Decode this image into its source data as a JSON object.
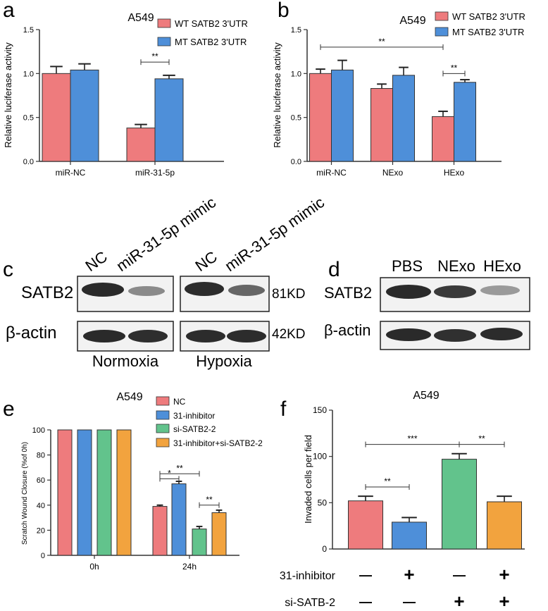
{
  "colors": {
    "red": "#EE7B7D",
    "blue": "#4E8FD9",
    "green": "#62C38C",
    "orange": "#F2A33E",
    "axis": "#333333"
  },
  "chart_data": [
    {
      "panel": "a",
      "type": "bar",
      "title": "A549",
      "ylabel": "Relative luciferase activity",
      "ylim": [
        0,
        1.5
      ],
      "yticks": [
        "0.0",
        "0.5",
        "1.0",
        "1.5"
      ],
      "categories": [
        "miR-NC",
        "miR-31-5p"
      ],
      "series": [
        {
          "name": "WT SATB2 3'UTR",
          "color": "red",
          "values": [
            1.0,
            0.38
          ],
          "errors": [
            0.08,
            0.04
          ]
        },
        {
          "name": "MT SATB2 3'UTR",
          "color": "blue",
          "values": [
            1.04,
            0.94
          ],
          "errors": [
            0.07,
            0.04
          ]
        }
      ],
      "significance": [
        {
          "label": "**",
          "group": 1,
          "from_series": 0,
          "to_series": 1,
          "y": 1.13
        }
      ]
    },
    {
      "panel": "b",
      "type": "bar",
      "title": "A549",
      "ylabel": "Relative luciferase activity",
      "ylim": [
        0,
        1.5
      ],
      "yticks": [
        "0.0",
        "0.5",
        "1.0",
        "1.5"
      ],
      "categories": [
        "miR-NC",
        "NExo",
        "HExo"
      ],
      "series": [
        {
          "name": "WT SATB2 3'UTR",
          "color": "red",
          "values": [
            1.0,
            0.83,
            0.51
          ],
          "errors": [
            0.05,
            0.05,
            0.06
          ]
        },
        {
          "name": "MT SATB2 3'UTR",
          "color": "blue",
          "values": [
            1.04,
            0.98,
            0.9
          ],
          "errors": [
            0.11,
            0.09,
            0.03
          ]
        }
      ],
      "significance": [
        {
          "label": "**",
          "from_group": 0,
          "from_series": 0,
          "to_group": 2,
          "to_series": 0,
          "y": 1.3
        },
        {
          "label": "**",
          "group": 2,
          "from_series": 0,
          "to_series": 1,
          "y": 1.0
        }
      ]
    },
    {
      "panel": "e",
      "type": "bar",
      "title": "A549",
      "ylabel": "Scratch Wound Closure (%of 0h)",
      "ylim": [
        0,
        100
      ],
      "yticks": [
        "0",
        "20",
        "40",
        "60",
        "80",
        "100"
      ],
      "categories": [
        "0h",
        "24h"
      ],
      "series": [
        {
          "name": "NC",
          "color": "red",
          "values": [
            100,
            39
          ],
          "errors": [
            0,
            1
          ]
        },
        {
          "name": "31-inhibitor",
          "color": "blue",
          "values": [
            100,
            57
          ],
          "errors": [
            0,
            2
          ]
        },
        {
          "name": "si-SATB2-2",
          "color": "green",
          "values": [
            100,
            21
          ],
          "errors": [
            0,
            2
          ]
        },
        {
          "name": "31-inhibitor+si-SATB2-2",
          "color": "orange",
          "values": [
            100,
            34
          ],
          "errors": [
            0,
            2
          ]
        }
      ],
      "significance": [
        {
          "label": "**",
          "group": 1,
          "from_series": 0,
          "to_series": 2,
          "y": 65
        },
        {
          "label": "*",
          "group": 1,
          "from_series": 0,
          "to_series": 1,
          "y": 61
        },
        {
          "label": "**",
          "group": 1,
          "from_series": 2,
          "to_series": 3,
          "y": 40
        }
      ]
    },
    {
      "panel": "f",
      "type": "bar",
      "title": "A549",
      "ylabel": "Invaded cells per field",
      "ylim": [
        0,
        150
      ],
      "yticks": [
        "0",
        "50",
        "100",
        "150"
      ],
      "categories": [
        "1",
        "2",
        "3",
        "4"
      ],
      "series": [
        {
          "name": "",
          "values": [
            52,
            29,
            97,
            51
          ],
          "errors": [
            5,
            5,
            6,
            6
          ],
          "colors": [
            "red",
            "blue",
            "green",
            "orange"
          ]
        }
      ],
      "significance": [
        {
          "label": "**",
          "from_bar": 0,
          "to_bar": 1,
          "y": 67
        },
        {
          "label": "***",
          "from_bar": 0,
          "to_bar": 2,
          "y": 113
        },
        {
          "label": "**",
          "from_bar": 2,
          "to_bar": 3,
          "y": 113
        }
      ],
      "conditions": [
        {
          "label": "31-inhibitor",
          "marks": [
            "—",
            "+",
            "—",
            "+"
          ]
        },
        {
          "label": "si-SATB-2",
          "marks": [
            "—",
            "—",
            "+",
            "+"
          ]
        }
      ]
    }
  ],
  "panel_letters": {
    "a": "a",
    "b": "b",
    "c": "c",
    "d": "d",
    "e": "e",
    "f": "f"
  },
  "blot_c": {
    "lanes_normoxia": [
      "NC",
      "miR-31-5p mimic"
    ],
    "lanes_hypoxia": [
      "NC",
      "miR-31-5p mimic"
    ],
    "rows": [
      "SATB2",
      "β-actin"
    ],
    "sizes": [
      "81KD",
      "42KD"
    ],
    "conditions": [
      "Normoxia",
      "Hypoxia"
    ]
  },
  "blot_d": {
    "lanes": [
      "PBS",
      "NExo",
      "HExo"
    ],
    "rows": [
      "SATB2",
      "β-actin"
    ]
  }
}
